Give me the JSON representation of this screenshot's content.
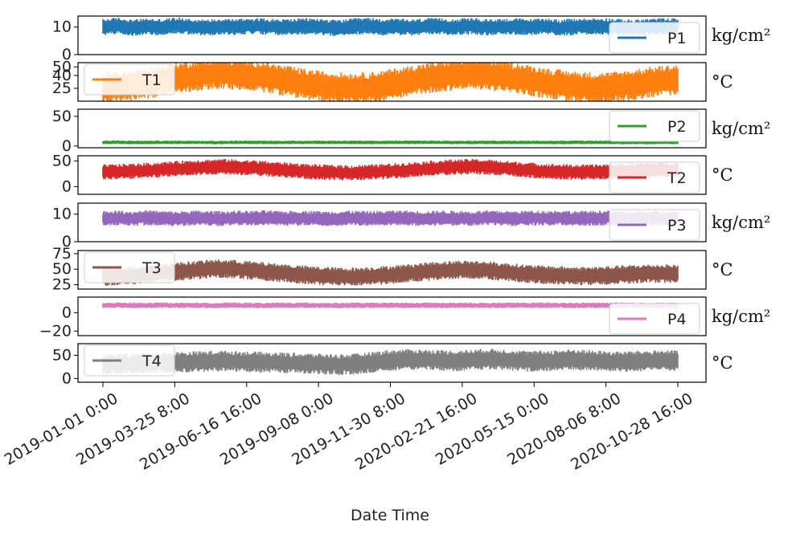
{
  "chart_data": {
    "type": "line",
    "xlabel": "Date Time",
    "x_ticks": [
      "2019-01-01 0:00",
      "2019-03-25 8:00",
      "2019-06-16 16:00",
      "2019-09-08 0:00",
      "2019-11-30 8:00",
      "2020-02-21 16:00",
      "2020-05-15 0:00",
      "2020-08-06 8:00",
      "2020-10-28 16:00"
    ],
    "x_range": [
      "2019-01-01 0:00",
      "2020-10-28 16:00"
    ],
    "grid": false,
    "series": [
      {
        "name": "P1",
        "unit": "kg/cm²",
        "color": "#1f77b4",
        "legend": "bottom-right",
        "ylim": [
          0,
          14
        ],
        "yticks": [
          0,
          10
        ],
        "baseline": 10,
        "band": [
          6.5,
          12.5
        ],
        "values": [
          10,
          10.5,
          9.8,
          10.2,
          10,
          10.6,
          10.1,
          9.7,
          10.3,
          10,
          10.4,
          10.2,
          9.9,
          10.1,
          10.3,
          10,
          9.6,
          10.2,
          10.4,
          10,
          10.1,
          9.8,
          10.3,
          10.2,
          10,
          10.4,
          9.9,
          10.1,
          10.2,
          10,
          10.3,
          9.8,
          10.1,
          10.2,
          10.4,
          10,
          9.7,
          10.1,
          10.3,
          10.2
        ]
      },
      {
        "name": "T1",
        "unit": "°C",
        "color": "#ff7f0e",
        "legend": "upper-left",
        "ylim": [
          10,
          55
        ],
        "yticks": [
          25,
          40,
          50
        ],
        "baseline": 32,
        "band": [
          14,
          50
        ],
        "values": [
          25,
          27,
          28,
          31,
          34,
          37,
          39,
          41,
          42,
          41,
          40,
          38,
          35,
          32,
          29,
          27,
          26,
          25,
          26,
          28,
          31,
          34,
          37,
          39,
          41,
          42,
          41,
          39,
          37,
          34,
          31,
          29,
          27,
          26,
          26,
          27,
          29,
          32,
          34,
          35
        ]
      },
      {
        "name": "P2",
        "unit": "kg/cm²",
        "color": "#2ca02c",
        "legend": "upper-right",
        "ylim": [
          -3,
          62
        ],
        "yticks": [
          0,
          50
        ],
        "baseline": 6,
        "band": [
          3,
          9
        ],
        "values": [
          6,
          6.2,
          6,
          5.9,
          6.1,
          6,
          6.2,
          6,
          5.8,
          6.1,
          6,
          6.1,
          5.9,
          6,
          6.2,
          6,
          6.1,
          6,
          5.9,
          6,
          6.1,
          6,
          6.2,
          6,
          5.9,
          6,
          6.1,
          6,
          6,
          6.1,
          5.9,
          6,
          6.2,
          6,
          6.1,
          6,
          5.9,
          6,
          6.1,
          6
        ]
      },
      {
        "name": "T2",
        "unit": "°C",
        "color": "#d62728",
        "legend": "bottom-right",
        "ylim": [
          -15,
          60
        ],
        "yticks": [
          0,
          50
        ],
        "baseline": 30,
        "band": [
          15,
          45
        ],
        "values": [
          28,
          29,
          30,
          31,
          33,
          35,
          37,
          38,
          39,
          38,
          37,
          35,
          33,
          31,
          29,
          28,
          27,
          27,
          28,
          29,
          31,
          33,
          35,
          37,
          38,
          39,
          38,
          36,
          34,
          32,
          30,
          29,
          28,
          28,
          29,
          30,
          31,
          32,
          33,
          33
        ]
      },
      {
        "name": "P3",
        "unit": "kg/cm²",
        "color": "#9467bd",
        "legend": "bottom-right",
        "ylim": [
          0,
          14
        ],
        "yticks": [
          0,
          10
        ],
        "baseline": 8.5,
        "band": [
          6,
          11.5
        ],
        "values": [
          8.5,
          8.6,
          8.4,
          8.7,
          8.5,
          8.3,
          8.6,
          8.5,
          8.4,
          8.6,
          8.5,
          8.7,
          8.4,
          8.5,
          8.6,
          8.3,
          8.5,
          8.6,
          8.4,
          8.5,
          8.7,
          8.5,
          8.4,
          8.6,
          8.5,
          8.3,
          8.6,
          8.5,
          8.4,
          8.6,
          8.5,
          8.7,
          8.4,
          8.5,
          8.6,
          8.5,
          8.4,
          8.6,
          8.5,
          8.5
        ]
      },
      {
        "name": "T3",
        "unit": "°C",
        "color": "#8c564b",
        "legend": "upper-left",
        "ylim": [
          18,
          80
        ],
        "yticks": [
          25,
          50,
          75
        ],
        "baseline": 40,
        "band": [
          25,
          55
        ],
        "values": [
          38,
          39,
          40,
          42,
          44,
          46,
          48,
          50,
          51,
          50,
          48,
          46,
          44,
          42,
          40,
          39,
          38,
          38,
          39,
          40,
          42,
          44,
          46,
          48,
          49,
          49,
          48,
          46,
          44,
          42,
          41,
          40,
          39,
          39,
          40,
          41,
          42,
          43,
          43,
          42
        ]
      },
      {
        "name": "P4",
        "unit": "kg/cm²",
        "color": "#e377c2",
        "legend": "bottom-right",
        "ylim": [
          -25,
          17
        ],
        "yticks": [
          -20,
          0
        ],
        "baseline": 8,
        "band": [
          5,
          11
        ],
        "values": [
          8,
          8.1,
          8,
          7.9,
          8.2,
          8,
          8.1,
          7.9,
          8,
          8.2,
          8,
          7.9,
          8.1,
          8,
          8.2,
          8,
          7.9,
          8.1,
          8,
          8,
          8.1,
          7.9,
          8.2,
          8,
          8,
          8.1,
          7.9,
          8,
          8.2,
          8,
          8.1,
          7.9,
          8,
          8.1,
          8,
          8.2,
          8,
          7.9,
          8.1,
          8
        ]
      },
      {
        "name": "T4",
        "unit": "°C",
        "color": "#7f7f7f",
        "legend": "upper-left",
        "ylim": [
          -8,
          75
        ],
        "yticks": [
          0,
          50
        ],
        "baseline": 30,
        "band": [
          10,
          55
        ],
        "values": [
          30,
          31,
          32,
          33,
          34,
          35,
          36,
          37,
          38,
          37,
          36,
          35,
          34,
          33,
          32,
          31,
          30,
          31,
          34,
          38,
          40,
          41,
          40,
          39,
          38,
          40,
          42,
          41,
          39,
          37,
          38,
          40,
          41,
          39,
          37,
          36,
          37,
          38,
          39,
          38
        ]
      }
    ]
  }
}
